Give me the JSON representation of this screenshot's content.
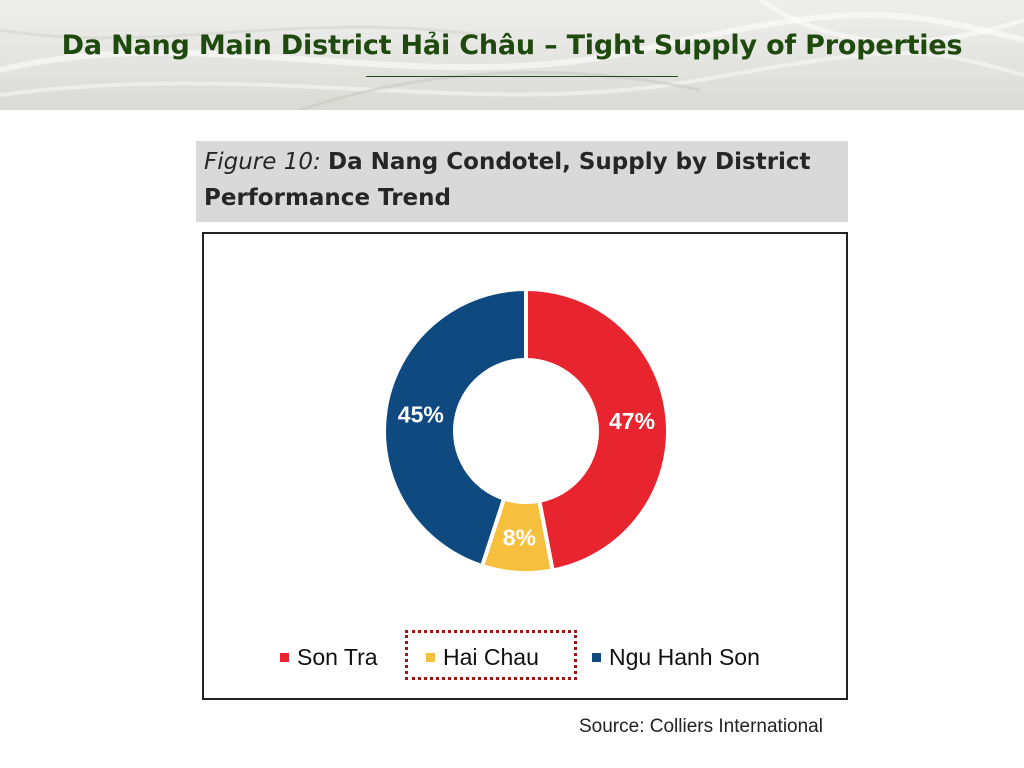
{
  "slide": {
    "title": "Da Nang Main District Hải Châu – Tight Supply of Properties"
  },
  "figure": {
    "label": "Figure 10:",
    "name_line1": "Da Nang Condotel, Supply by District",
    "name_line2": "Performance Trend"
  },
  "chart_data": {
    "type": "pie",
    "variant": "donut",
    "categories": [
      "Son Tra",
      "Hai Chau",
      "Ngu Hanh Son"
    ],
    "values": [
      47,
      8,
      45
    ],
    "value_labels": [
      "47%",
      "8%",
      "45%"
    ],
    "colors": [
      "#e8242e",
      "#f6bf3d",
      "#0e4a80"
    ],
    "legend_position": "bottom",
    "highlighted_category": "Hai Chau"
  },
  "source": "Source: Colliers International"
}
